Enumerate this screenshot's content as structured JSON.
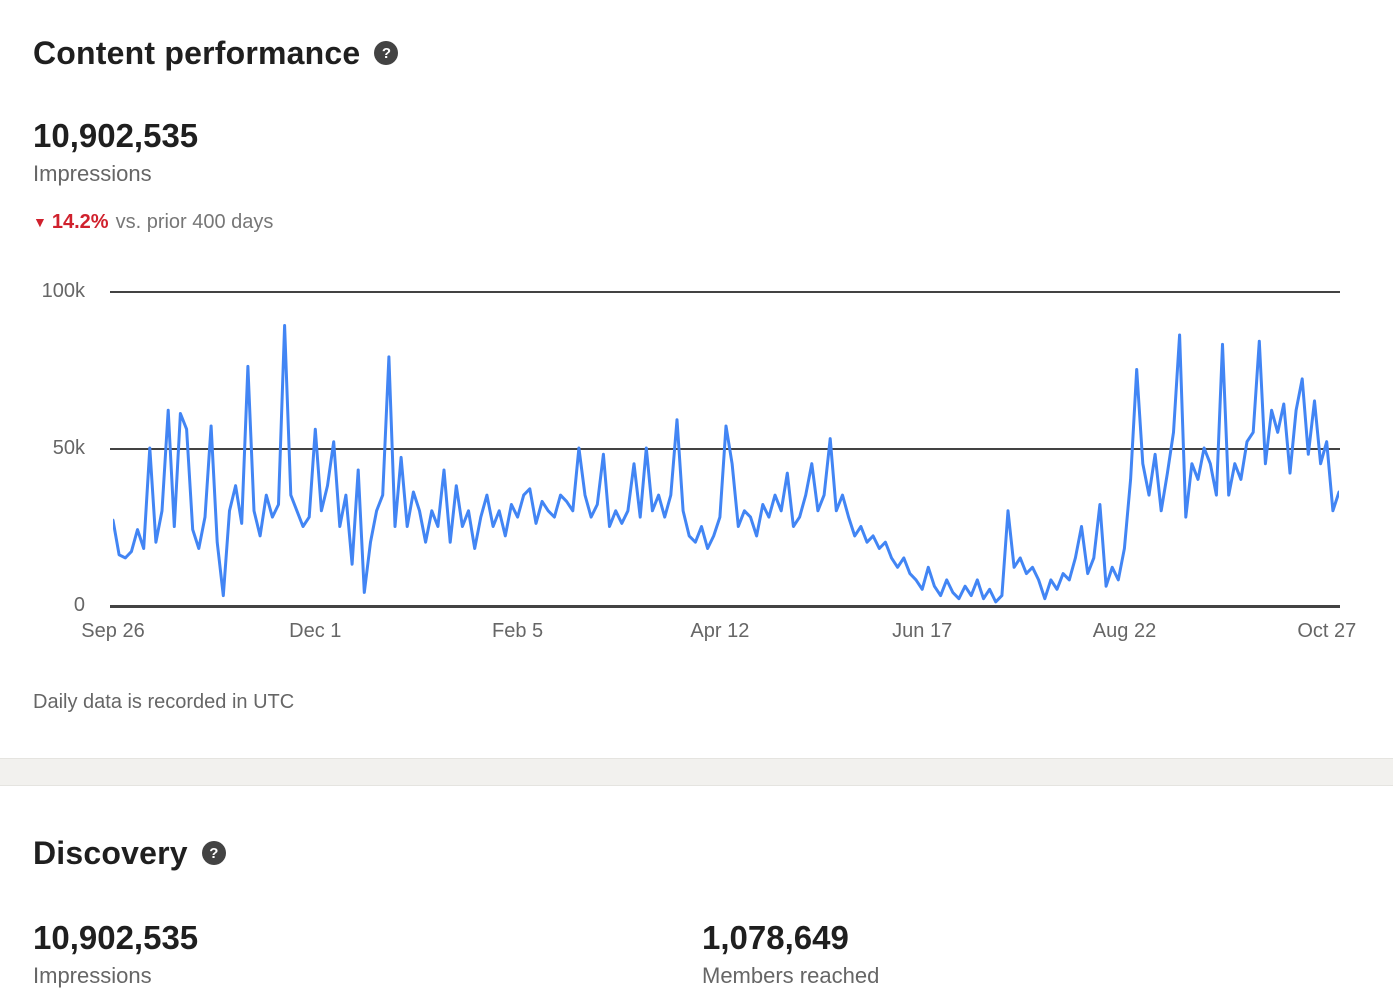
{
  "content_performance": {
    "title": "Content performance",
    "metric": {
      "value": "10,902,535",
      "label": "Impressions"
    },
    "change": {
      "direction": "down",
      "percent": "14.2%",
      "comparison": "vs. prior 400 days"
    },
    "footnote": "Daily data is recorded in UTC"
  },
  "discovery": {
    "title": "Discovery",
    "metrics": [
      {
        "value": "10,902,535",
        "label": "Impressions"
      },
      {
        "value": "1,078,649",
        "label": "Members reached"
      }
    ]
  },
  "chart_data": {
    "type": "line",
    "series_name": "Impressions",
    "x_ticks": [
      "Sep 26",
      "Dec 1",
      "Feb 5",
      "Apr 12",
      "Jun 17",
      "Aug 22",
      "Oct 27"
    ],
    "y_ticks": [
      {
        "label": "100k",
        "value": 100000
      },
      {
        "label": "50k",
        "value": 50000
      },
      {
        "label": "0",
        "value": 0
      }
    ],
    "ylim": [
      0,
      100000
    ],
    "x_range_days": 400,
    "grid": "horizontal-only",
    "legend": "none",
    "line_color": "#4285F4",
    "grid_color": "#434343",
    "values_unit": "thousands, sampled ~every 2 days",
    "values_thousands": [
      27,
      16,
      15,
      17,
      24,
      18,
      50,
      20,
      30,
      62,
      25,
      61,
      56,
      24,
      18,
      28,
      57,
      20,
      3,
      30,
      38,
      26,
      76,
      30,
      22,
      35,
      28,
      32,
      89,
      35,
      30,
      25,
      28,
      56,
      30,
      38,
      52,
      25,
      35,
      13,
      43,
      4,
      20,
      30,
      35,
      79,
      25,
      47,
      25,
      36,
      30,
      20,
      30,
      25,
      43,
      20,
      38,
      25,
      30,
      18,
      28,
      35,
      25,
      30,
      22,
      32,
      28,
      35,
      37,
      26,
      33,
      30,
      28,
      35,
      33,
      30,
      50,
      35,
      28,
      32,
      48,
      25,
      30,
      26,
      30,
      45,
      28,
      50,
      30,
      35,
      28,
      35,
      59,
      30,
      22,
      20,
      25,
      18,
      22,
      28,
      57,
      45,
      25,
      30,
      28,
      22,
      32,
      28,
      35,
      30,
      42,
      25,
      28,
      35,
      45,
      30,
      35,
      53,
      30,
      35,
      28,
      22,
      25,
      20,
      22,
      18,
      20,
      15,
      12,
      15,
      10,
      8,
      5,
      12,
      6,
      3,
      8,
      4,
      2,
      6,
      3,
      8,
      2,
      5,
      1,
      3,
      30,
      12,
      15,
      10,
      12,
      8,
      2,
      8,
      5,
      10,
      8,
      15,
      25,
      10,
      15,
      32,
      6,
      12,
      8,
      18,
      40,
      75,
      45,
      35,
      48,
      30,
      42,
      55,
      86,
      28,
      45,
      40,
      50,
      45,
      35,
      83,
      35,
      45,
      40,
      52,
      55,
      84,
      45,
      62,
      55,
      64,
      42,
      62,
      72,
      48,
      65,
      45,
      52,
      30,
      36
    ]
  },
  "colors": {
    "text_primary": "#1f1f1f",
    "text_secondary": "#666666",
    "negative_red": "#d0212d",
    "chart_line_blue": "#4285F4",
    "gridline_dark": "#434343",
    "divider_band": "#f2f1ee"
  }
}
